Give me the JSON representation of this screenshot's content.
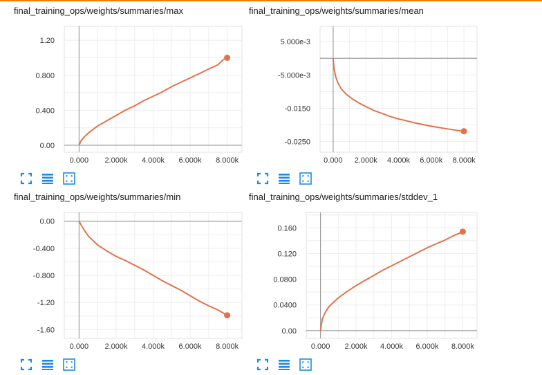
{
  "colors": {
    "series": "#e3724a",
    "grid": "#e0e0e0",
    "axis": "#9e9e9e",
    "tool_icon": "#1e88e5",
    "accent_bar": "#f57c00"
  },
  "tool_icons": [
    "expand-icon",
    "list-icon",
    "fit-icon"
  ],
  "chart_data": [
    {
      "type": "line",
      "title": "final_training_ops/weights/summaries/max",
      "xlim": [
        -800,
        8800
      ],
      "ylim": [
        -0.08,
        1.36
      ],
      "xticks": [
        0,
        2000,
        4000,
        6000,
        8000
      ],
      "xtick_labels": [
        "0.000",
        "2.000k",
        "4.000k",
        "6.000k",
        "8.000k"
      ],
      "yticks": [
        0,
        0.4,
        0.8,
        1.2
      ],
      "ytick_labels": [
        "0.00",
        "0.400",
        "0.800",
        "1.20"
      ],
      "series": [
        {
          "x": [
            0,
            100,
            300,
            500,
            1000,
            1500,
            2000,
            2500,
            3000,
            3500,
            4000,
            4500,
            5000,
            5500,
            6000,
            6500,
            7000,
            7500,
            7800,
            8000
          ],
          "y": [
            0.0,
            0.05,
            0.1,
            0.14,
            0.22,
            0.28,
            0.34,
            0.4,
            0.45,
            0.51,
            0.56,
            0.61,
            0.67,
            0.72,
            0.77,
            0.82,
            0.87,
            0.92,
            0.98,
            1.0
          ]
        }
      ]
    },
    {
      "type": "line",
      "title": "final_training_ops/weights/summaries/mean",
      "xlim": [
        -800,
        8800
      ],
      "ylim": [
        -0.0282,
        0.0096
      ],
      "xticks": [
        0,
        2000,
        4000,
        6000,
        8000
      ],
      "xtick_labels": [
        "0.000",
        "2.000k",
        "4.000k",
        "6.000k",
        "8.000k"
      ],
      "yticks": [
        0.005,
        -0.005,
        -0.015,
        -0.025
      ],
      "ytick_labels": [
        "5.000e-3",
        "-5.000e-3",
        "-0.0150",
        "-0.0250"
      ],
      "series": [
        {
          "x": [
            0,
            50,
            150,
            300,
            500,
            800,
            1200,
            1600,
            2000,
            2500,
            3000,
            3500,
            4000,
            4500,
            5000,
            5500,
            6000,
            6500,
            7000,
            7500,
            8000
          ],
          "y": [
            0.0,
            -0.003,
            -0.0055,
            -0.0075,
            -0.0092,
            -0.0108,
            -0.0123,
            -0.0135,
            -0.0145,
            -0.0157,
            -0.0166,
            -0.0175,
            -0.0182,
            -0.0188,
            -0.0194,
            -0.0199,
            -0.0204,
            -0.0208,
            -0.0212,
            -0.0216,
            -0.0219
          ]
        }
      ]
    },
    {
      "type": "line",
      "title": "final_training_ops/weights/summaries/min",
      "xlim": [
        -800,
        8800
      ],
      "ylim": [
        -1.73,
        0.13
      ],
      "xticks": [
        0,
        2000,
        4000,
        6000,
        8000
      ],
      "xtick_labels": [
        "0.000",
        "2.000k",
        "4.000k",
        "6.000k",
        "8.000k"
      ],
      "yticks": [
        0,
        -0.4,
        -0.8,
        -1.2,
        -1.6
      ],
      "ytick_labels": [
        "0.00",
        "-0.400",
        "-0.800",
        "-1.20",
        "-1.60"
      ],
      "series": [
        {
          "x": [
            0,
            100,
            300,
            500,
            1000,
            1500,
            2000,
            2500,
            3000,
            3500,
            4000,
            4500,
            5000,
            5500,
            6000,
            6500,
            7000,
            7500,
            8000
          ],
          "y": [
            0.0,
            -0.05,
            -0.14,
            -0.22,
            -0.35,
            -0.44,
            -0.52,
            -0.58,
            -0.65,
            -0.72,
            -0.8,
            -0.88,
            -0.95,
            -1.02,
            -1.1,
            -1.18,
            -1.25,
            -1.31,
            -1.39
          ]
        }
      ]
    },
    {
      "type": "line",
      "title": "final_training_ops/weights/summaries/stddev_1",
      "xlim": [
        -800,
        8800
      ],
      "ylim": [
        -0.012,
        0.184
      ],
      "xticks": [
        0,
        2000,
        4000,
        6000,
        8000
      ],
      "xtick_labels": [
        "0.000",
        "2.000k",
        "4.000k",
        "6.000k",
        "8.000k"
      ],
      "yticks": [
        0,
        0.04,
        0.08,
        0.12,
        0.16
      ],
      "ytick_labels": [
        "0.00",
        "0.0400",
        "0.0800",
        "0.120",
        "0.160"
      ],
      "series": [
        {
          "x": [
            0,
            100,
            300,
            500,
            1000,
            1500,
            2000,
            2500,
            3000,
            3500,
            4000,
            4500,
            5000,
            5500,
            6000,
            6500,
            7000,
            7500,
            8000
          ],
          "y": [
            0.0,
            0.018,
            0.03,
            0.038,
            0.051,
            0.061,
            0.07,
            0.078,
            0.086,
            0.094,
            0.101,
            0.108,
            0.115,
            0.122,
            0.129,
            0.135,
            0.141,
            0.148,
            0.154
          ]
        }
      ]
    }
  ]
}
